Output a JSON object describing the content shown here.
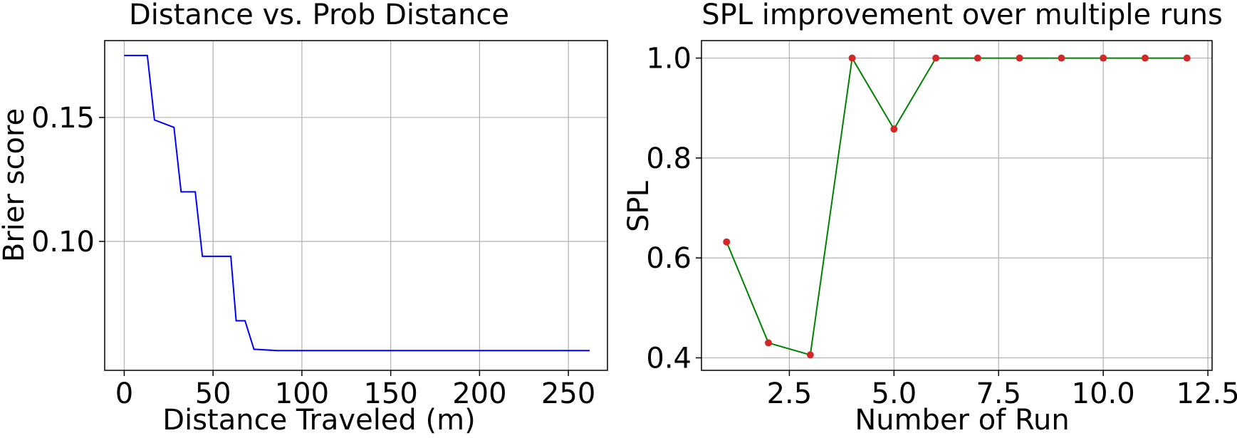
{
  "chart_data": [
    {
      "type": "line",
      "title": "Distance vs. Prob Distance",
      "xlabel": "Distance Traveled (m)",
      "ylabel": "Brier score",
      "xlim": [
        -11,
        272
      ],
      "ylim": [
        0.048,
        0.181
      ],
      "xticks": [
        "0",
        "50",
        "100",
        "150",
        "200",
        "250"
      ],
      "xtick_values": [
        0,
        50,
        100,
        150,
        200,
        250
      ],
      "yticks": [
        "0.10",
        "0.15"
      ],
      "ytick_values": [
        0.1,
        0.15
      ],
      "grid": true,
      "series": [
        {
          "color": "#0000ff",
          "x": [
            0,
            13,
            17,
            28,
            32,
            40,
            44,
            60,
            63,
            68,
            73,
            86,
            262
          ],
          "y": [
            0.175,
            0.175,
            0.149,
            0.146,
            0.12,
            0.12,
            0.094,
            0.094,
            0.068,
            0.068,
            0.0565,
            0.056,
            0.056
          ]
        }
      ]
    },
    {
      "type": "line",
      "title": "SPL improvement over multiple runs",
      "xlabel": "Number of Run",
      "ylabel": "SPL",
      "xlim": [
        0.4,
        12.6
      ],
      "ylim": [
        0.375,
        1.035
      ],
      "xticks": [
        "2.5",
        "5.0",
        "7.5",
        "10.0",
        "12.5"
      ],
      "xtick_values": [
        2.5,
        5.0,
        7.5,
        10.0,
        12.5
      ],
      "yticks": [
        "0.4",
        "0.6",
        "0.8",
        "1.0"
      ],
      "ytick_values": [
        0.4,
        0.6,
        0.8,
        1.0
      ],
      "grid": true,
      "series": [
        {
          "color": "#008000",
          "marker_color": "#d62728",
          "x": [
            1,
            2,
            3,
            4,
            5,
            6,
            7,
            8,
            9,
            10,
            11,
            12
          ],
          "y": [
            0.632,
            0.43,
            0.406,
            1.0,
            0.858,
            1.0,
            1.0,
            1.0,
            1.0,
            1.0,
            1.0,
            1.0
          ]
        }
      ]
    }
  ]
}
